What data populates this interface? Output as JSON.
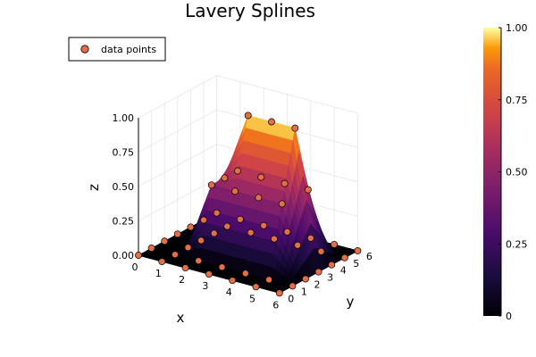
{
  "chart_data": {
    "type": "surface3d",
    "title": "Lavery Splines",
    "xlabel": "x",
    "ylabel": "y",
    "zlabel": "z",
    "xticks": [
      "0",
      "1",
      "2",
      "3",
      "4",
      "5",
      "6"
    ],
    "yticks": [
      "0",
      "1",
      "2",
      "3",
      "4",
      "5",
      "6"
    ],
    "zticks": [
      "0.00",
      "0.25",
      "0.50",
      "0.75",
      "1.00"
    ],
    "xlim": [
      0,
      6
    ],
    "ylim": [
      0,
      6
    ],
    "zlim": [
      0,
      1
    ],
    "colormap": "inferno",
    "colorbar": {
      "range": [
        0,
        1
      ],
      "ticks": [
        "0",
        "0.25",
        "0.50",
        "0.75",
        "1.00"
      ]
    },
    "legend": {
      "position": "top-left",
      "entries": [
        "data points"
      ]
    },
    "grid": true,
    "surface": {
      "x_nodes": [
        0,
        1,
        2,
        3,
        4,
        5,
        6
      ],
      "y_nodes": [
        0,
        1,
        2,
        3,
        4,
        5,
        6
      ],
      "z_nodes": [
        [
          0,
          0,
          0,
          0,
          0,
          0,
          0
        ],
        [
          0,
          0,
          0,
          0,
          0,
          0,
          0
        ],
        [
          0,
          0,
          0.5,
          0.5,
          0.5,
          0,
          0
        ],
        [
          0,
          0,
          0.5,
          1,
          0.5,
          0,
          0
        ],
        [
          0,
          0,
          0.5,
          1,
          0.5,
          0,
          0
        ],
        [
          0,
          0,
          0.5,
          1,
          0.5,
          0,
          0
        ],
        [
          0,
          0,
          0,
          0,
          0,
          0,
          0
        ]
      ]
    },
    "series": [
      {
        "name": "data points",
        "color": "#e26f46",
        "points": [
          [
            0,
            0,
            0
          ],
          [
            0,
            1,
            0
          ],
          [
            0,
            2,
            0
          ],
          [
            0,
            3,
            0
          ],
          [
            0,
            4,
            0
          ],
          [
            0,
            5,
            0
          ],
          [
            0,
            6,
            0
          ],
          [
            1,
            0,
            0
          ],
          [
            1,
            1,
            0
          ],
          [
            1,
            2,
            0
          ],
          [
            1,
            3,
            0
          ],
          [
            1,
            4,
            0
          ],
          [
            1,
            5,
            0
          ],
          [
            1,
            6,
            0
          ],
          [
            2,
            0,
            0
          ],
          [
            2,
            1,
            0
          ],
          [
            2,
            2,
            0.5
          ],
          [
            2,
            3,
            0.5
          ],
          [
            2,
            4,
            0.5
          ],
          [
            2,
            5,
            0
          ],
          [
            2,
            6,
            0
          ],
          [
            3,
            0,
            0
          ],
          [
            3,
            1,
            0
          ],
          [
            3,
            2,
            0.5
          ],
          [
            3,
            3,
            1
          ],
          [
            3,
            4,
            0.5
          ],
          [
            3,
            5,
            0
          ],
          [
            3,
            6,
            0
          ],
          [
            4,
            0,
            0
          ],
          [
            4,
            1,
            0
          ],
          [
            4,
            2,
            0.5
          ],
          [
            4,
            3,
            1
          ],
          [
            4,
            4,
            0.5
          ],
          [
            4,
            5,
            0
          ],
          [
            4,
            6,
            0
          ],
          [
            5,
            0,
            0
          ],
          [
            5,
            1,
            0
          ],
          [
            5,
            2,
            0.5
          ],
          [
            5,
            3,
            1
          ],
          [
            5,
            4,
            0.5
          ],
          [
            5,
            5,
            0
          ],
          [
            5,
            6,
            0
          ],
          [
            6,
            0,
            0
          ],
          [
            6,
            1,
            0
          ],
          [
            6,
            2,
            0
          ],
          [
            6,
            3,
            0
          ],
          [
            6,
            4,
            0
          ],
          [
            6,
            5,
            0
          ],
          [
            6,
            6,
            0
          ]
        ]
      }
    ]
  }
}
